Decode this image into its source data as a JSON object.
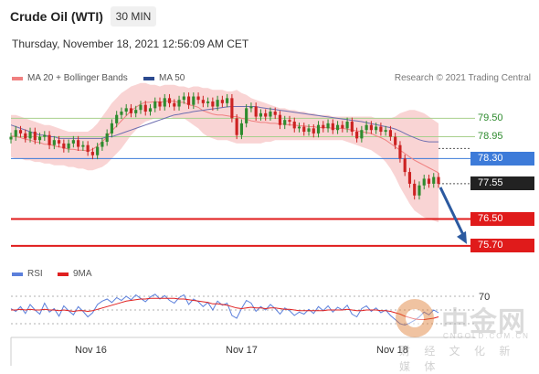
{
  "header": {
    "title": "Crude Oil (WTI)",
    "timeframe": "30 MIN",
    "timestamp": "Thursday, November 18, 2021 12:56:09 AM CET"
  },
  "legend": [
    {
      "label": "MA 20 + Bollinger Bands",
      "color": "#f08080"
    },
    {
      "label": "MA 50",
      "color": "#2c4a8f"
    }
  ],
  "credit": "Research © 2021 Trading Central",
  "rsi_legend": [
    {
      "label": "RSI",
      "color": "#5b7fdb"
    },
    {
      "label": "9MA",
      "color": "#e02020"
    }
  ],
  "watermark": {
    "cn": "中金网",
    "en": "CNGOLD.COM.CN",
    "sub": "财 经 文 化 新 媒 体"
  },
  "colors": {
    "bull": "#2e8b2e",
    "bear": "#cc2222",
    "band": "#f7c6c6",
    "resistance": "#2e8b2e",
    "pivot": "#3d7bd9",
    "support": "#e01b1b",
    "current": "#222222",
    "arrow": "#2c5aa0"
  },
  "chart_data": {
    "type": "candlestick",
    "x_labels": [
      "Nov 16",
      "Nov 17",
      "Nov 18"
    ],
    "ylim": [
      75.45,
      80.3
    ],
    "levels": [
      {
        "value": 79.5,
        "label": "79.50",
        "kind": "resistance"
      },
      {
        "value": 78.95,
        "label": "78.95",
        "kind": "resistance"
      },
      {
        "value": 78.3,
        "label": "78.30",
        "kind": "pivot"
      },
      {
        "value": 77.55,
        "label": "77.55",
        "kind": "current"
      },
      {
        "value": 76.5,
        "label": "76.50",
        "kind": "support"
      },
      {
        "value": 75.7,
        "label": "75.70",
        "kind": "support"
      }
    ],
    "forecast_arrow": {
      "from": 77.55,
      "to": 75.7
    },
    "close": [
      78.95,
      79.15,
      79.05,
      78.9,
      79.1,
      78.85,
      78.95,
      79.0,
      78.7,
      78.85,
      78.75,
      78.6,
      78.75,
      78.85,
      78.65,
      78.7,
      78.5,
      78.4,
      78.65,
      78.8,
      79.05,
      79.35,
      79.6,
      79.7,
      79.8,
      79.65,
      79.75,
      79.9,
      79.7,
      79.8,
      80.0,
      79.85,
      80.1,
      79.95,
      79.85,
      80.05,
      80.15,
      79.9,
      80.15,
      80.05,
      79.95,
      80.0,
      79.85,
      80.05,
      79.95,
      80.1,
      79.5,
      79.0,
      79.35,
      79.8,
      79.85,
      79.55,
      79.65,
      79.55,
      79.7,
      79.6,
      79.3,
      79.45,
      79.4,
      79.2,
      79.25,
      79.1,
      79.2,
      79.05,
      79.3,
      79.2,
      79.35,
      79.15,
      79.3,
      79.2,
      79.4,
      79.1,
      78.9,
      79.15,
      79.3,
      79.15,
      79.25,
      79.1,
      79.15,
      78.95,
      78.7,
      78.3,
      77.9,
      77.55,
      77.2,
      77.5,
      77.7,
      77.55,
      77.75,
      77.55
    ],
    "bb_upper": [
      79.6,
      79.6,
      79.55,
      79.5,
      79.45,
      79.4,
      79.35,
      79.3,
      79.3,
      79.25,
      79.2,
      79.15,
      79.1,
      79.1,
      79.1,
      79.1,
      79.1,
      79.2,
      79.35,
      79.55,
      79.75,
      79.95,
      80.1,
      80.25,
      80.35,
      80.45,
      80.5,
      80.55,
      80.55,
      80.5,
      80.5,
      80.45,
      80.5,
      80.5,
      80.5,
      80.45,
      80.45,
      80.4,
      80.45,
      80.45,
      80.4,
      80.4,
      80.35,
      80.35,
      80.35,
      80.3,
      80.3,
      80.35,
      80.25,
      80.2,
      80.1,
      80.05,
      80.0,
      79.95,
      79.9,
      79.85,
      79.8,
      79.8,
      79.75,
      79.75,
      79.7,
      79.7,
      79.65,
      79.65,
      79.6,
      79.6,
      79.6,
      79.55,
      79.55,
      79.55,
      79.55,
      79.55,
      79.55,
      79.55,
      79.55,
      79.55,
      79.5,
      79.5,
      79.5,
      79.5,
      79.55,
      79.65,
      79.7,
      79.75,
      79.75,
      79.7,
      79.65,
      79.55,
      79.45,
      79.35
    ],
    "bb_lower": [
      78.35,
      78.3,
      78.3,
      78.25,
      78.25,
      78.2,
      78.2,
      78.15,
      78.15,
      78.1,
      78.1,
      78.1,
      78.05,
      78.05,
      78.0,
      78.0,
      77.95,
      77.95,
      78.0,
      78.05,
      78.15,
      78.3,
      78.45,
      78.6,
      78.8,
      79.0,
      79.15,
      79.3,
      79.4,
      79.45,
      79.5,
      79.5,
      79.5,
      79.55,
      79.5,
      79.5,
      79.5,
      79.4,
      79.3,
      79.2,
      79.05,
      78.95,
      78.9,
      78.85,
      78.85,
      78.85,
      78.8,
      78.75,
      78.75,
      78.75,
      78.75,
      78.75,
      78.75,
      78.8,
      78.8,
      78.85,
      78.85,
      78.85,
      78.85,
      78.85,
      78.85,
      78.85,
      78.85,
      78.85,
      78.85,
      78.85,
      78.85,
      78.85,
      78.85,
      78.85,
      78.8,
      78.75,
      78.7,
      78.65,
      78.6,
      78.55,
      78.45,
      78.35,
      78.2,
      78.0,
      77.75,
      77.45,
      77.2,
      76.95,
      76.75,
      76.65,
      76.55,
      76.5,
      76.45,
      76.4
    ],
    "ma50": [
      79.3,
      79.25,
      79.2,
      79.15,
      79.1,
      79.05,
      79.0,
      79.0,
      78.95,
      78.95,
      78.9,
      78.9,
      78.9,
      78.9,
      78.9,
      78.9,
      78.9,
      78.9,
      78.9,
      78.9,
      78.95,
      78.95,
      79.0,
      79.05,
      79.1,
      79.15,
      79.2,
      79.25,
      79.3,
      79.35,
      79.4,
      79.45,
      79.5,
      79.55,
      79.6,
      79.62,
      79.65,
      79.67,
      79.7,
      79.72,
      79.74,
      79.76,
      79.78,
      79.8,
      79.82,
      79.84,
      79.85,
      79.85,
      79.85,
      79.85,
      79.85,
      79.85,
      79.82,
      79.8,
      79.78,
      79.76,
      79.74,
      79.72,
      79.7,
      79.68,
      79.66,
      79.64,
      79.62,
      79.6,
      79.58,
      79.56,
      79.54,
      79.52,
      79.5,
      79.48,
      79.46,
      79.44,
      79.42,
      79.4,
      79.37,
      79.34,
      79.31,
      79.28,
      79.25,
      79.22,
      79.18,
      79.12,
      79.05,
      78.98,
      78.92,
      78.86,
      78.82,
      78.8,
      78.8,
      78.8
    ],
    "rsi_ylim": [
      22,
      78
    ],
    "rsi_level": {
      "value": 70,
      "label": "70"
    },
    "rsi": [
      52,
      48,
      55,
      45,
      58,
      50,
      44,
      60,
      47,
      52,
      41,
      56,
      49,
      43,
      55,
      48,
      40,
      46,
      58,
      63,
      66,
      61,
      68,
      64,
      70,
      65,
      72,
      67,
      62,
      69,
      73,
      66,
      71,
      64,
      60,
      68,
      72,
      58,
      66,
      62,
      55,
      61,
      50,
      63,
      57,
      60,
      42,
      38,
      52,
      64,
      60,
      48,
      55,
      50,
      58,
      52,
      44,
      53,
      49,
      42,
      47,
      44,
      51,
      45,
      55,
      49,
      56,
      47,
      54,
      50,
      57,
      44,
      40,
      52,
      56,
      48,
      53,
      46,
      50,
      42,
      36,
      30,
      28,
      31,
      35,
      40,
      47,
      43,
      50,
      46
    ],
    "rsi_ma": [
      50,
      50,
      51,
      50,
      51,
      50,
      50,
      51,
      50,
      50,
      49,
      50,
      49,
      48,
      49,
      49,
      48,
      49,
      51,
      53,
      55,
      57,
      59,
      61,
      63,
      64,
      65,
      66,
      66,
      67,
      67,
      67,
      67,
      67,
      67,
      66,
      66,
      65,
      64,
      63,
      62,
      61,
      59,
      59,
      58,
      57,
      55,
      53,
      52,
      53,
      54,
      53,
      53,
      52,
      53,
      53,
      52,
      51,
      51,
      50,
      49,
      49,
      49,
      49,
      49,
      49,
      50,
      50,
      50,
      50,
      51,
      50,
      49,
      49,
      50,
      50,
      50,
      49,
      49,
      48,
      46,
      44,
      41,
      39,
      37,
      36,
      36,
      37,
      38,
      40
    ]
  }
}
